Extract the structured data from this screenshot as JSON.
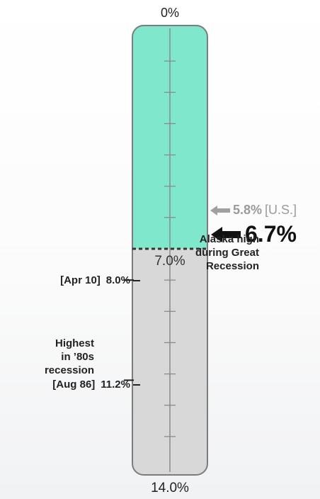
{
  "chart_data": {
    "type": "gauge",
    "scale_min": 0,
    "scale_max": 14,
    "scale_min_label": "0%",
    "scale_max_label": "14.0%",
    "threshold": 7.0,
    "threshold_label": "7.0%",
    "fill_top_color": "#7fe8cc",
    "fill_bottom_color": "#d8d8d8",
    "tick_step": 1,
    "markers": [
      {
        "value": 5.8,
        "value_label": "5.8%",
        "label": "[U.S.]",
        "color": "#9a9a9a"
      },
      {
        "value": 6.7,
        "value_label": "6.7%",
        "label": "",
        "color": "#111111"
      }
    ],
    "annotations": [
      {
        "value": 8.0,
        "lines": [
          "Alaska high",
          "during Great",
          "Recession"
        ],
        "date": "[Apr 10]",
        "value_label": "8.0%"
      },
      {
        "value": 11.2,
        "lines": [
          "Highest",
          "in ’80s",
          "recession"
        ],
        "date": "[Aug 86]",
        "value_label": "11.2%"
      }
    ]
  }
}
